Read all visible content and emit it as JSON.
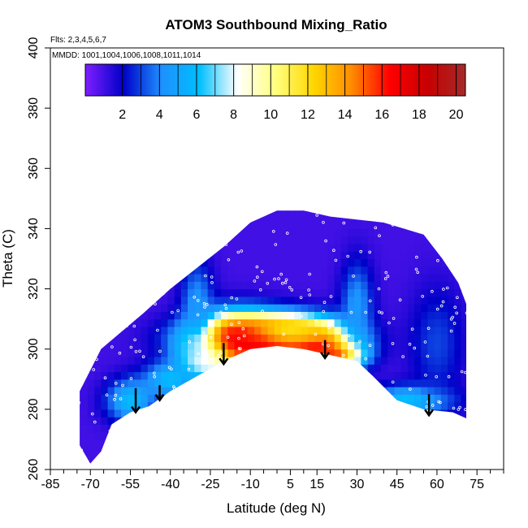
{
  "chart_data": {
    "type": "heatmap",
    "title": "ATOM3 Southbound Mixing_Ratio",
    "flights_note": "Flts: 2,3,4,5,6,7",
    "dates_note": "MMDD: 1001,1004,1006,1008,1011,1014",
    "xlabel": "Latitude (deg N)",
    "ylabel": "Theta (C)",
    "xlim": [
      -85,
      85
    ],
    "ylim": [
      260,
      400
    ],
    "x_major_ticks": [
      -85,
      -70,
      -55,
      -40,
      -25,
      -10,
      5,
      15,
      30,
      45,
      60,
      75
    ],
    "x_minor_tick_step": 5,
    "y_ticks": [
      260,
      280,
      300,
      320,
      340,
      360,
      380,
      400
    ],
    "colorbar": {
      "min": 0,
      "max": 20.5,
      "ticks": [
        2,
        4,
        6,
        8,
        10,
        12,
        14,
        16,
        18,
        20
      ],
      "colors": [
        "#7f1fff",
        "#0000c8",
        "#1e90ff",
        "#00bfff",
        "#ffffff",
        "#ffff80",
        "#ffd700",
        "#ff8c00",
        "#ff0000",
        "#c80000",
        "#a52a2a"
      ]
    },
    "domain": {
      "top": [
        [
          -74,
          286
        ],
        [
          -66,
          300
        ],
        [
          -50,
          312
        ],
        [
          -40,
          320
        ],
        [
          -20,
          334
        ],
        [
          -10,
          342
        ],
        [
          0,
          346
        ],
        [
          10,
          346
        ],
        [
          20,
          344
        ],
        [
          40,
          342
        ],
        [
          55,
          338
        ],
        [
          62,
          330
        ],
        [
          68,
          322
        ],
        [
          71,
          315
        ]
      ],
      "bottom": [
        [
          71,
          277
        ],
        [
          66,
          279
        ],
        [
          55,
          280
        ],
        [
          45,
          283
        ],
        [
          36,
          291
        ],
        [
          30,
          296
        ],
        [
          20,
          298
        ],
        [
          10,
          300
        ],
        [
          0,
          301
        ],
        [
          -10,
          300
        ],
        [
          -20,
          296
        ],
        [
          -30,
          291
        ],
        [
          -40,
          286
        ],
        [
          -48,
          281
        ],
        [
          -55,
          279
        ],
        [
          -62,
          275
        ],
        [
          -66,
          266
        ],
        [
          -70,
          262
        ],
        [
          -74,
          268
        ]
      ]
    },
    "features": [
      {
        "lat": -5,
        "theta": 304,
        "sx": 24,
        "sy": 7,
        "value": 19.5
      },
      {
        "lat": -15,
        "theta": 302,
        "sx": 14,
        "sy": 9,
        "value": 17
      },
      {
        "lat": 14,
        "theta": 301,
        "sx": 14,
        "sy": 7,
        "value": 17
      },
      {
        "lat": 22,
        "theta": 298,
        "sx": 9,
        "sy": 4,
        "value": 16
      },
      {
        "lat": -28,
        "theta": 296,
        "sx": 9,
        "sy": 6,
        "value": 9
      },
      {
        "lat": -40,
        "theta": 290,
        "sx": 10,
        "sy": 6,
        "value": 6
      },
      {
        "lat": -55,
        "theta": 283,
        "sx": 9,
        "sy": 7,
        "value": 6
      },
      {
        "lat": 50,
        "theta": 283,
        "sx": 15,
        "sy": 5,
        "value": 6.5
      },
      {
        "lat": 5,
        "theta": 306,
        "sx": 14,
        "sy": 4,
        "value": 12
      },
      {
        "lat": -30,
        "theta": 315,
        "sx": 6,
        "sy": 14,
        "value": 4.5
      },
      {
        "lat": 30,
        "theta": 315,
        "sx": 6,
        "sy": 14,
        "value": 4.5
      },
      {
        "lat": 60,
        "theta": 302,
        "sx": 10,
        "sy": 18,
        "value": 3
      }
    ],
    "arrows": [
      {
        "lat": -53,
        "theta_top": 287,
        "theta_bottom": 279
      },
      {
        "lat": -44,
        "theta_top": 288,
        "theta_bottom": 283
      },
      {
        "lat": -20,
        "theta_top": 302,
        "theta_bottom": 295
      },
      {
        "lat": 18,
        "theta_top": 303,
        "theta_bottom": 297
      },
      {
        "lat": 57,
        "theta_top": 285,
        "theta_bottom": 278
      }
    ]
  }
}
